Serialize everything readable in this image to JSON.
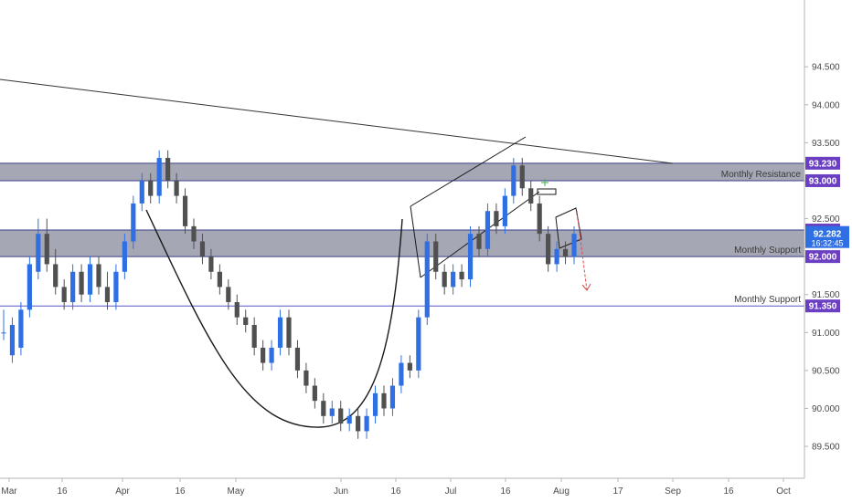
{
  "chart_data": {
    "type": "candlestick",
    "price_axis": {
      "ticks": [
        "94.500",
        "94.000",
        "93.500",
        "93.000",
        "92.500",
        "92.000",
        "91.500",
        "91.000",
        "90.500",
        "90.000",
        "89.500"
      ],
      "tick_values": [
        94.5,
        94.0,
        93.5,
        93.0,
        92.5,
        92.0,
        91.5,
        91.0,
        90.5,
        90.0,
        89.5
      ],
      "ylim": [
        89.08,
        95.38
      ]
    },
    "time_axis": {
      "labels": [
        "Mar",
        "16",
        "Apr",
        "16",
        "May",
        "Jun",
        "16",
        "Jul",
        "16",
        "Aug",
        "17",
        "Sep",
        "16",
        "Oct"
      ]
    },
    "zones": [
      {
        "label": "Monthly Resistance",
        "low": 93.0,
        "high": 93.23
      },
      {
        "label": "Monthly Support",
        "low": 92.0,
        "high": 92.35
      }
    ],
    "lines": [
      {
        "label": "Monthly Support",
        "value": 91.35
      }
    ],
    "price_badges": [
      {
        "text": "93.230",
        "value": 93.23
      },
      {
        "text": "93.000",
        "value": 93.0
      },
      {
        "text": "92.350",
        "value": 92.35
      },
      {
        "text": "92.000",
        "value": 92.0
      },
      {
        "text": "91.350",
        "value": 91.35
      }
    ],
    "current_price": {
      "price": "92.282",
      "countdown": "16:32:45",
      "value": 92.282
    },
    "colors": {
      "up": "#2f6fe4",
      "down": "#505050",
      "zone": "#5d5f79",
      "badge": "#6a3fc2",
      "current": "#2f6fe4",
      "trendline": "#333333",
      "arrow": "#e04848"
    },
    "candles": [
      [
        91.0,
        91.0,
        90.9,
        91.3
      ],
      [
        90.7,
        91.1,
        90.6,
        91.2
      ],
      [
        90.8,
        91.3,
        90.7,
        91.4
      ],
      [
        91.3,
        91.9,
        91.2,
        92.0
      ],
      [
        91.8,
        92.3,
        91.7,
        92.5
      ],
      [
        92.3,
        91.9,
        91.8,
        92.5
      ],
      [
        91.9,
        91.6,
        91.5,
        92.1
      ],
      [
        91.6,
        91.4,
        91.3,
        91.7
      ],
      [
        91.4,
        91.8,
        91.3,
        91.9
      ],
      [
        91.8,
        91.5,
        91.4,
        91.9
      ],
      [
        91.5,
        91.9,
        91.4,
        92.0
      ],
      [
        91.9,
        91.6,
        91.5,
        92.0
      ],
      [
        91.6,
        91.4,
        91.3,
        91.8
      ],
      [
        91.4,
        91.8,
        91.3,
        91.9
      ],
      [
        91.8,
        92.2,
        91.7,
        92.3
      ],
      [
        92.2,
        92.7,
        92.1,
        92.8
      ],
      [
        92.7,
        93.0,
        92.6,
        93.1
      ],
      [
        93.0,
        92.8,
        92.7,
        93.1
      ],
      [
        92.8,
        93.3,
        92.7,
        93.4
      ],
      [
        93.3,
        93.0,
        92.9,
        93.4
      ],
      [
        93.0,
        92.8,
        92.7,
        93.1
      ],
      [
        92.8,
        92.4,
        92.3,
        92.9
      ],
      [
        92.4,
        92.2,
        92.1,
        92.5
      ],
      [
        92.2,
        92.0,
        91.9,
        92.3
      ],
      [
        92.0,
        91.8,
        91.7,
        92.1
      ],
      [
        91.8,
        91.6,
        91.5,
        91.9
      ],
      [
        91.6,
        91.4,
        91.3,
        91.7
      ],
      [
        91.4,
        91.2,
        91.1,
        91.5
      ],
      [
        91.2,
        91.1,
        91.0,
        91.3
      ],
      [
        91.1,
        90.8,
        90.7,
        91.2
      ],
      [
        90.8,
        90.6,
        90.5,
        90.9
      ],
      [
        90.6,
        90.8,
        90.5,
        90.9
      ],
      [
        90.8,
        91.2,
        90.7,
        91.3
      ],
      [
        91.2,
        90.8,
        90.7,
        91.3
      ],
      [
        90.8,
        90.5,
        90.4,
        90.9
      ],
      [
        90.5,
        90.3,
        90.2,
        90.6
      ],
      [
        90.3,
        90.1,
        90.0,
        90.4
      ],
      [
        90.1,
        89.9,
        89.8,
        90.2
      ],
      [
        89.9,
        90.0,
        89.8,
        90.1
      ],
      [
        90.0,
        89.8,
        89.7,
        90.1
      ],
      [
        89.8,
        89.9,
        89.7,
        90.0
      ],
      [
        89.9,
        89.7,
        89.6,
        90.0
      ],
      [
        89.7,
        89.9,
        89.6,
        90.0
      ],
      [
        89.9,
        90.2,
        89.8,
        90.3
      ],
      [
        90.2,
        90.0,
        89.9,
        90.3
      ],
      [
        90.0,
        90.3,
        89.9,
        90.4
      ],
      [
        90.3,
        90.6,
        90.2,
        90.7
      ],
      [
        90.6,
        90.5,
        90.4,
        90.7
      ],
      [
        90.5,
        91.2,
        90.4,
        91.3
      ],
      [
        91.2,
        92.2,
        91.1,
        92.3
      ],
      [
        92.2,
        91.8,
        91.7,
        92.3
      ],
      [
        91.8,
        91.6,
        91.5,
        91.9
      ],
      [
        91.6,
        91.8,
        91.5,
        91.9
      ],
      [
        91.8,
        91.7,
        91.6,
        91.9
      ],
      [
        91.7,
        92.3,
        91.6,
        92.4
      ],
      [
        92.3,
        92.1,
        92.0,
        92.4
      ],
      [
        92.1,
        92.6,
        92.0,
        92.7
      ],
      [
        92.6,
        92.4,
        92.3,
        92.7
      ],
      [
        92.4,
        92.8,
        92.3,
        92.9
      ],
      [
        92.8,
        93.2,
        92.7,
        93.3
      ],
      [
        93.2,
        92.9,
        92.8,
        93.3
      ],
      [
        92.9,
        92.7,
        92.6,
        93.0
      ],
      [
        92.7,
        92.3,
        92.2,
        92.8
      ],
      [
        92.3,
        91.9,
        91.8,
        92.4
      ],
      [
        91.9,
        92.1,
        91.8,
        92.2
      ],
      [
        92.1,
        92.0,
        91.9,
        92.2
      ],
      [
        92.0,
        92.3,
        91.9,
        92.4
      ]
    ]
  }
}
